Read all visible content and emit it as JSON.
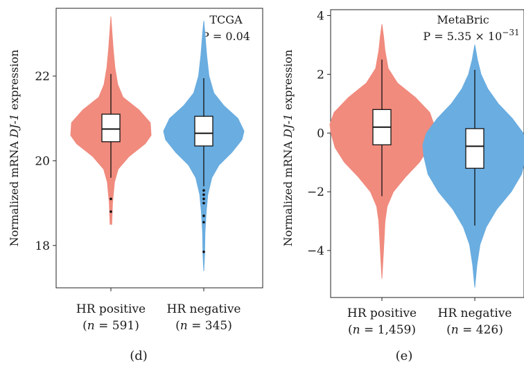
{
  "chart_data": [
    {
      "type": "violin",
      "panel_label": "(d)",
      "ylabel": "Normalized mRNA DJ-1 expression",
      "dataset": "TCGA",
      "p_value": "P = 0.04",
      "ylim": [
        17.0,
        23.6
      ],
      "yticks": [
        18,
        20,
        22
      ],
      "groups": [
        {
          "name": "HR positive",
          "n": "(n = 591)",
          "color": "#F08B7E",
          "q1": 20.45,
          "median": 20.75,
          "q3": 21.1,
          "whisker_low": 19.6,
          "whisker_high": 22.05,
          "min": 18.5,
          "max": 23.4,
          "outliers": [
            19.1,
            18.8
          ],
          "density": [
            [
              18.5,
              0.02
            ],
            [
              19.0,
              0.04
            ],
            [
              19.5,
              0.09
            ],
            [
              19.8,
              0.18
            ],
            [
              20.1,
              0.45
            ],
            [
              20.4,
              0.85
            ],
            [
              20.6,
              1.0
            ],
            [
              20.9,
              0.98
            ],
            [
              21.2,
              0.7
            ],
            [
              21.5,
              0.3
            ],
            [
              21.8,
              0.17
            ],
            [
              22.2,
              0.1
            ],
            [
              22.6,
              0.06
            ],
            [
              23.0,
              0.03
            ],
            [
              23.4,
              0.0
            ]
          ]
        },
        {
          "name": "HR negative",
          "n": "(n = 345)",
          "color": "#6AADE0",
          "q1": 20.35,
          "median": 20.65,
          "q3": 21.05,
          "whisker_low": 19.4,
          "whisker_high": 21.95,
          "min": 17.4,
          "max": 23.3,
          "outliers": [
            19.3,
            19.2,
            19.1,
            19.0,
            18.7,
            18.55,
            17.85
          ],
          "density": [
            [
              17.4,
              0.0
            ],
            [
              17.8,
              0.02
            ],
            [
              18.3,
              0.03
            ],
            [
              18.8,
              0.06
            ],
            [
              19.2,
              0.1
            ],
            [
              19.6,
              0.2
            ],
            [
              19.9,
              0.38
            ],
            [
              20.2,
              0.7
            ],
            [
              20.5,
              0.95
            ],
            [
              20.7,
              1.0
            ],
            [
              21.0,
              0.85
            ],
            [
              21.3,
              0.5
            ],
            [
              21.6,
              0.25
            ],
            [
              22.0,
              0.13
            ],
            [
              22.5,
              0.07
            ],
            [
              23.0,
              0.03
            ],
            [
              23.3,
              0.0
            ]
          ]
        }
      ]
    },
    {
      "type": "violin",
      "panel_label": "(e)",
      "ylabel": "Normalized mRNA DJ-1 expression",
      "dataset": "MetaBric",
      "p_value": "P = 5.35 × 10−31",
      "ylim": [
        -5.6,
        4.2
      ],
      "yticks": [
        -4,
        -2,
        0,
        2,
        4
      ],
      "groups": [
        {
          "name": "HR positive",
          "n": "(n = 1,459)",
          "color": "#F08B7E",
          "q1": -0.4,
          "median": 0.2,
          "q3": 0.8,
          "whisker_low": -2.15,
          "whisker_high": 2.5,
          "min": -4.95,
          "max": 3.7,
          "outliers": [],
          "density": [
            [
              -4.95,
              0.0
            ],
            [
              -4.0,
              0.03
            ],
            [
              -3.0,
              0.06
            ],
            [
              -2.5,
              0.1
            ],
            [
              -2.0,
              0.22
            ],
            [
              -1.5,
              0.45
            ],
            [
              -1.0,
              0.72
            ],
            [
              -0.5,
              0.9
            ],
            [
              0.0,
              0.98
            ],
            [
              0.3,
              1.0
            ],
            [
              0.7,
              0.92
            ],
            [
              1.2,
              0.65
            ],
            [
              1.7,
              0.3
            ],
            [
              2.2,
              0.12
            ],
            [
              2.8,
              0.06
            ],
            [
              3.3,
              0.03
            ],
            [
              3.7,
              0.0
            ]
          ]
        },
        {
          "name": "HR negative",
          "n": "(n = 426)",
          "color": "#6AADE0",
          "q1": -1.2,
          "median": -0.45,
          "q3": 0.15,
          "whisker_low": -3.15,
          "whisker_high": 2.15,
          "min": -5.25,
          "max": 3.0,
          "outliers": [],
          "density": [
            [
              -5.25,
              0.0
            ],
            [
              -4.5,
              0.04
            ],
            [
              -3.8,
              0.1
            ],
            [
              -3.2,
              0.22
            ],
            [
              -2.6,
              0.42
            ],
            [
              -2.0,
              0.7
            ],
            [
              -1.4,
              0.9
            ],
            [
              -0.8,
              0.98
            ],
            [
              -0.4,
              1.0
            ],
            [
              0.0,
              0.93
            ],
            [
              0.5,
              0.72
            ],
            [
              1.0,
              0.45
            ],
            [
              1.5,
              0.25
            ],
            [
              2.0,
              0.12
            ],
            [
              2.5,
              0.05
            ],
            [
              3.0,
              0.0
            ]
          ]
        }
      ]
    }
  ]
}
